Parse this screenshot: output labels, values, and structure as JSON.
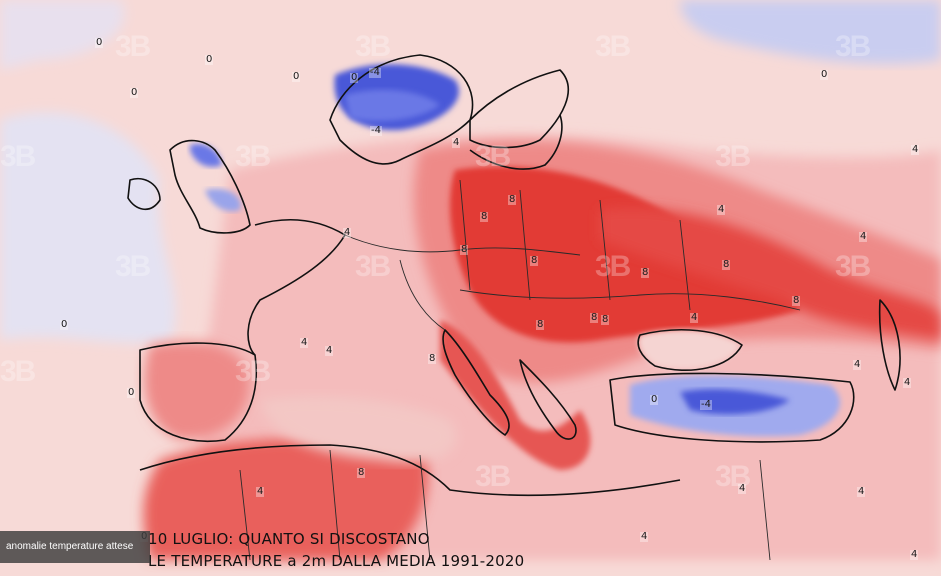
{
  "map": {
    "title_line1": "10 LUGLIO:    QUANTO SI DISCOSTANO",
    "title_line2": "LE TEMPERATURE a 2m DALLA MEDIA 1991-2020",
    "caption": "anomalie temperature attese",
    "watermark_text": "3B",
    "legend_colors": {
      "strong_warm": "#e03030",
      "warm": "#ee7a78",
      "mild_warm": "#f6bfbf",
      "neutral": "#f7dad7",
      "cool": "#d9dcf2",
      "cold": "#4a58d8",
      "coastline": "#111111"
    },
    "isolines": [
      {
        "label": "0"
      },
      {
        "label": "0"
      },
      {
        "label": "0"
      },
      {
        "label": "0"
      },
      {
        "label": "0"
      },
      {
        "label": "0"
      },
      {
        "label": "0"
      },
      {
        "label": "0"
      },
      {
        "label": "0"
      },
      {
        "label": "0"
      },
      {
        "label": "-4"
      },
      {
        "label": "-4"
      },
      {
        "label": "-4"
      },
      {
        "label": "4"
      },
      {
        "label": "4"
      },
      {
        "label": "4"
      },
      {
        "label": "4"
      },
      {
        "label": "4"
      },
      {
        "label": "4"
      },
      {
        "label": "4"
      },
      {
        "label": "4"
      },
      {
        "label": "4"
      },
      {
        "label": "4"
      },
      {
        "label": "4"
      },
      {
        "label": "4"
      },
      {
        "label": "4"
      },
      {
        "label": "4"
      },
      {
        "label": "4"
      },
      {
        "label": "8"
      },
      {
        "label": "8"
      },
      {
        "label": "8"
      },
      {
        "label": "8"
      },
      {
        "label": "8"
      },
      {
        "label": "8"
      },
      {
        "label": "8"
      },
      {
        "label": "8"
      },
      {
        "label": "8"
      },
      {
        "label": "8"
      },
      {
        "label": "8"
      },
      {
        "label": "8"
      }
    ]
  }
}
